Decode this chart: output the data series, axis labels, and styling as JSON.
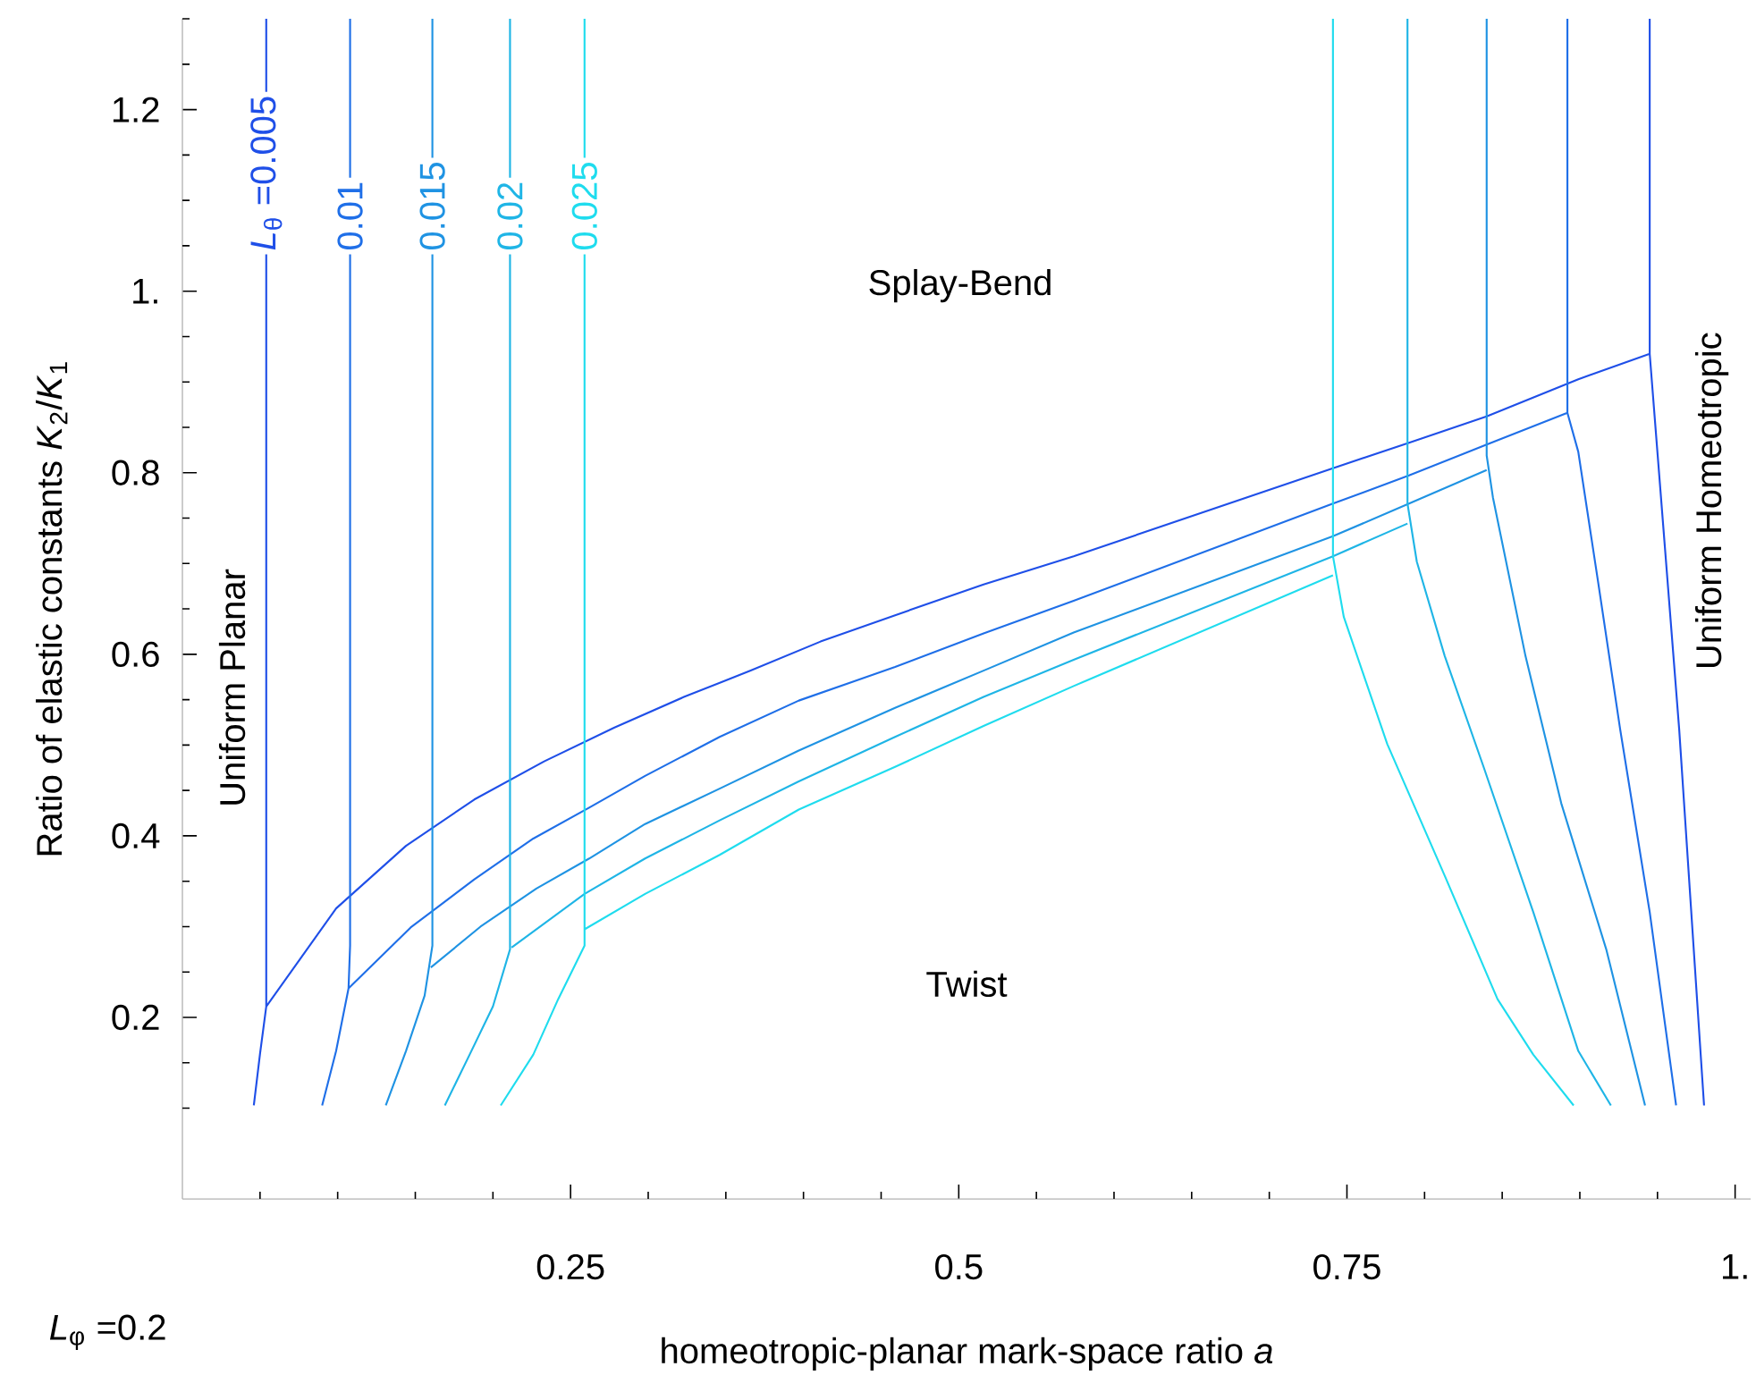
{
  "chart_data": {
    "type": "line",
    "xlabel": "homeotropic-planar mark-space ratio *a*",
    "ylabel": "Ratio of elastic constants *K*$_{2}$/*K*$_{1}$",
    "annotations": [
      "Splay-Bend",
      "Twist",
      "Uniform Planar",
      "Uniform Homeotropic",
      "*L*$_{φ}$ =0.2"
    ],
    "xlim": [
      0,
      1.01
    ],
    "ylim": [
      0,
      1.3
    ],
    "xticks": [
      {
        "value": 0.05,
        "label": null
      },
      {
        "value": 0.1,
        "label": null
      },
      {
        "value": 0.15,
        "label": null
      },
      {
        "value": 0.2,
        "label": null
      },
      0.25,
      {
        "value": 0.3,
        "label": null
      },
      {
        "value": 0.35,
        "label": null
      },
      {
        "value": 0.4,
        "label": null
      },
      {
        "value": 0.45,
        "label": null
      },
      0.5,
      {
        "value": 0.55,
        "label": null
      },
      {
        "value": 0.6,
        "label": null
      },
      {
        "value": 0.65,
        "label": null
      },
      {
        "value": 0.7,
        "label": null
      },
      0.75,
      {
        "value": 0.8,
        "label": null
      },
      {
        "value": 0.85,
        "label": null
      },
      {
        "value": 0.9,
        "label": null
      },
      {
        "value": 0.95,
        "label": null
      },
      {
        "value": 1,
        "label": "1."
      }
    ],
    "yticks": [
      {
        "value": 0.1,
        "label": null
      },
      {
        "value": 0.15,
        "label": null
      },
      0.2,
      {
        "value": 0.25,
        "label": null
      },
      {
        "value": 0.3,
        "label": null
      },
      {
        "value": 0.35,
        "label": null
      },
      0.4,
      {
        "value": 0.45,
        "label": null
      },
      {
        "value": 0.5,
        "label": null
      },
      {
        "value": 0.55,
        "label": null
      },
      0.6,
      {
        "value": 0.65,
        "label": null
      },
      {
        "value": 0.7,
        "label": null
      },
      {
        "value": 0.75,
        "label": null
      },
      0.8,
      {
        "value": 0.85,
        "label": null
      },
      {
        "value": 0.9,
        "label": null
      },
      {
        "value": 0.95,
        "label": null
      },
      {
        "value": 1,
        "label": "1."
      },
      {
        "value": 1.05,
        "label": null
      },
      {
        "value": 1.1,
        "label": null
      },
      {
        "value": 1.15,
        "label": null
      },
      1.2,
      {
        "value": 1.25,
        "label": null
      },
      {
        "value": 1.3,
        "label": null
      }
    ],
    "series": [
      {
        "name": "*L*$_{θ}$ =0.005",
        "color": "#1f4fe8",
        "x": [
          0.054,
          0.054,
          0.05,
          0.046,
          null,
          0.054,
          0.099,
          0.144,
          0.188,
          0.233,
          0.278,
          0.323,
          0.366,
          0.411,
          0.459,
          0.516,
          0.574,
          0.741,
          0.79,
          0.84,
          0.899,
          0.945,
          null,
          0.945,
          0.945,
          0.964,
          0.98
        ],
        "values": [
          1.3,
          0.212,
          0.16,
          0.103,
          null,
          0.212,
          0.32,
          0.389,
          0.44,
          0.482,
          0.519,
          0.553,
          0.582,
          0.614,
          0.643,
          0.677,
          0.708,
          0.805,
          0.833,
          0.862,
          0.903,
          0.931,
          null,
          1.3,
          0.931,
          0.517,
          0.103
        ]
      },
      {
        "name": "0.01",
        "color": "#1f6fe8",
        "x": [
          0.108,
          0.108,
          0.107,
          0.099,
          0.09,
          null,
          0.107,
          0.147,
          0.188,
          0.226,
          0.262,
          0.298,
          0.346,
          0.397,
          0.459,
          0.516,
          0.574,
          0.741,
          0.79,
          0.84,
          0.892,
          null,
          0.892,
          0.892,
          0.899,
          0.912,
          0.926,
          0.945,
          0.962
        ],
        "values": [
          1.3,
          0.279,
          0.232,
          0.163,
          0.103,
          null,
          0.232,
          0.299,
          0.352,
          0.397,
          0.431,
          0.466,
          0.509,
          0.549,
          0.586,
          0.623,
          0.659,
          0.766,
          0.797,
          0.831,
          0.866,
          null,
          1.3,
          0.866,
          0.823,
          0.677,
          0.517,
          0.316,
          0.103
        ]
      },
      {
        "name": "0.015",
        "color": "#1f93e3",
        "x": [
          0.161,
          0.161,
          0.156,
          0.144,
          0.131,
          null,
          0.16,
          0.192,
          0.228,
          0.262,
          0.298,
          0.346,
          0.397,
          0.459,
          0.516,
          0.574,
          0.741,
          0.79,
          0.84,
          null,
          0.84,
          0.84,
          0.844,
          0.865,
          0.888,
          0.917,
          0.942
        ],
        "values": [
          1.3,
          0.279,
          0.224,
          0.163,
          0.103,
          null,
          0.255,
          0.3,
          0.342,
          0.375,
          0.413,
          0.452,
          0.494,
          0.541,
          0.582,
          0.624,
          0.73,
          0.766,
          0.803,
          null,
          1.3,
          0.819,
          0.773,
          0.598,
          0.436,
          0.275,
          0.103
        ]
      },
      {
        "name": "0.02",
        "color": "#1fb5e6",
        "x": [
          0.211,
          0.211,
          0.2,
          0.185,
          0.169,
          null,
          0.212,
          0.259,
          0.298,
          0.346,
          0.397,
          0.459,
          0.516,
          0.574,
          0.741,
          0.789,
          null,
          0.789,
          0.789,
          0.795,
          0.813,
          0.838,
          0.87,
          0.899,
          0.92
        ],
        "values": [
          1.3,
          0.275,
          0.212,
          0.159,
          0.103,
          null,
          0.277,
          0.336,
          0.375,
          0.417,
          0.46,
          0.509,
          0.553,
          0.594,
          0.708,
          0.744,
          null,
          1.3,
          0.766,
          0.702,
          0.598,
          0.476,
          0.316,
          0.163,
          0.103
        ]
      },
      {
        "name": "0.025",
        "color": "#1fdcee",
        "x": [
          0.259,
          0.259,
          0.242,
          0.226,
          0.205,
          null,
          0.259,
          0.298,
          0.346,
          0.397,
          0.459,
          0.516,
          0.574,
          0.741,
          null,
          0.741,
          0.741,
          0.748,
          0.776,
          0.813,
          0.847,
          0.87,
          0.896
        ],
        "values": [
          1.3,
          0.279,
          0.22,
          0.159,
          0.103,
          null,
          0.297,
          0.336,
          0.379,
          0.429,
          0.476,
          0.521,
          0.565,
          0.687,
          null,
          1.3,
          0.708,
          0.641,
          0.501,
          0.356,
          0.22,
          0.159,
          0.103
        ]
      }
    ]
  }
}
